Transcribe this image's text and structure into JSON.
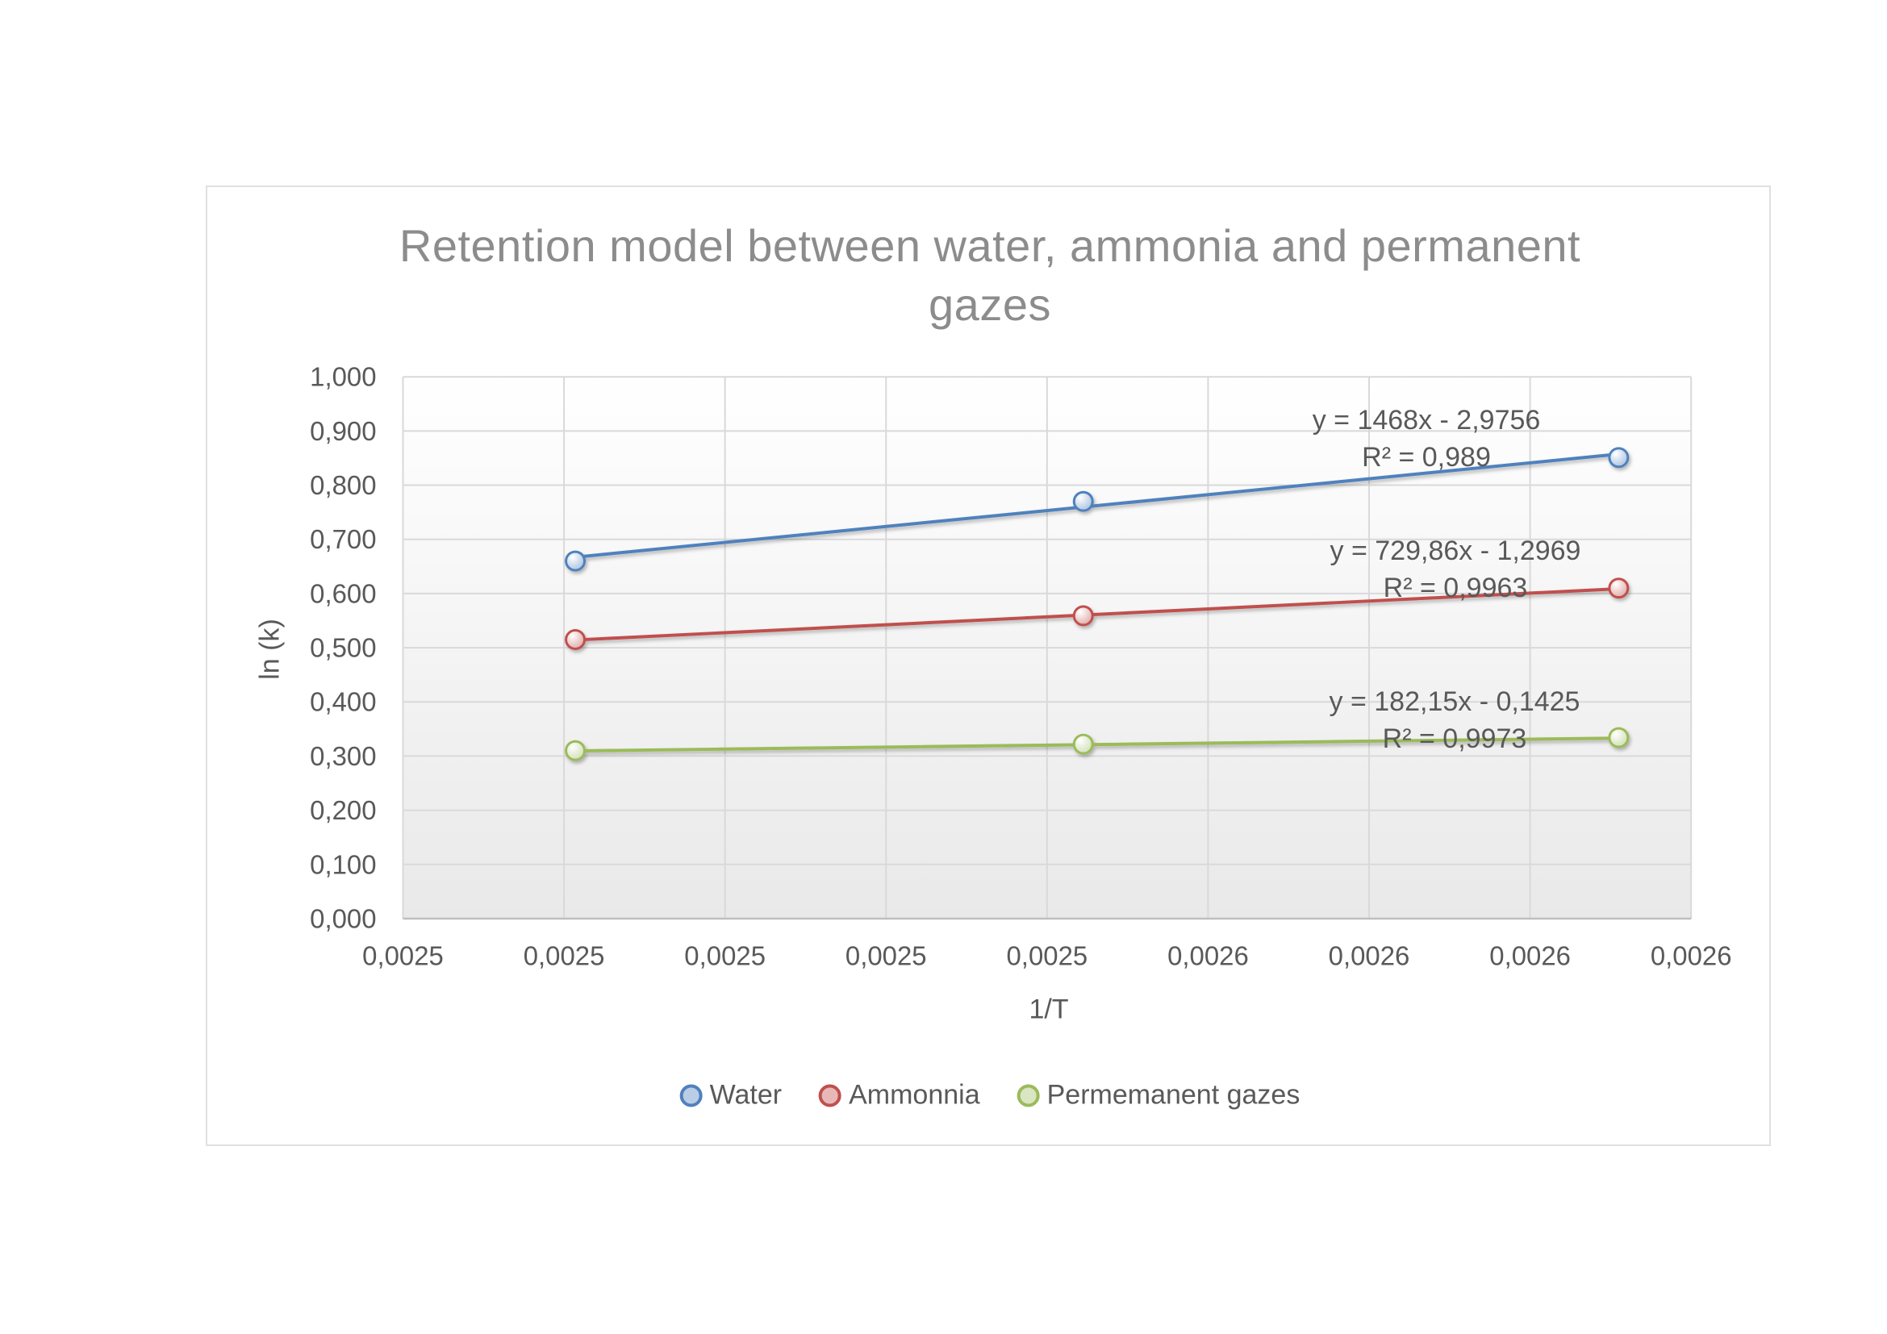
{
  "chart_data": {
    "type": "scatter",
    "title": "Retention model between water, ammonia and permanent gazes",
    "xlabel": "1/T",
    "ylabel": "ln (k)",
    "grid": true,
    "legend_position": "bottom",
    "x_axis": {
      "min": 0.00246,
      "max": 0.00262,
      "tick_step": 2e-05,
      "tick_labels": [
        "0,0025",
        "0,0025",
        "0,0025",
        "0,0025",
        "0,0025",
        "0,0026",
        "0,0026",
        "0,0026",
        "0,0026"
      ]
    },
    "y_axis": {
      "min": 0.0,
      "max": 1.0,
      "tick_step": 0.1,
      "tick_labels": [
        "0,000",
        "0,100",
        "0,200",
        "0,300",
        "0,400",
        "0,500",
        "0,600",
        "0,700",
        "0,800",
        "0,900",
        "1,000"
      ]
    },
    "series": [
      {
        "name": "Water",
        "color": "#4F81BD",
        "marker_fill": "#B9CDE5",
        "x": [
          0.0024814,
          0.0025445,
          0.002611
        ],
        "y": [
          0.66,
          0.77,
          0.851
        ],
        "trendline": {
          "slope": 1468,
          "intercept": -2.9756
        },
        "equation": "y = 1468x - 2,9756",
        "r2_label": "R² = 0,989"
      },
      {
        "name": "Ammonnia",
        "color": "#C0504D",
        "marker_fill": "#E6B9B8",
        "x": [
          0.0024814,
          0.0025445,
          0.002611
        ],
        "y": [
          0.515,
          0.559,
          0.61
        ],
        "trendline": {
          "slope": 729.86,
          "intercept": -1.2969
        },
        "equation": "y = 729,86x - 1,2969",
        "r2_label": "R² = 0,9963"
      },
      {
        "name": "Permemanent gazes",
        "color": "#9BBB59",
        "marker_fill": "#D9E5C3",
        "x": [
          0.0024814,
          0.0025445,
          0.002611
        ],
        "y": [
          0.31,
          0.322,
          0.334
        ],
        "trendline": {
          "slope": 182.15,
          "intercept": -0.1425
        },
        "equation": "y = 182,15x - 0,1425",
        "r2_label": "R² = 0,9973"
      }
    ],
    "style": {
      "gridline_color": "#D9D9D9",
      "axis_line_color": "#BFBFBF",
      "tick_label_color": "#595959",
      "title_color": "#8C8C8C",
      "plot_bg_top": "#FFFFFF",
      "plot_bg_bottom": "#E9E9E9"
    }
  }
}
